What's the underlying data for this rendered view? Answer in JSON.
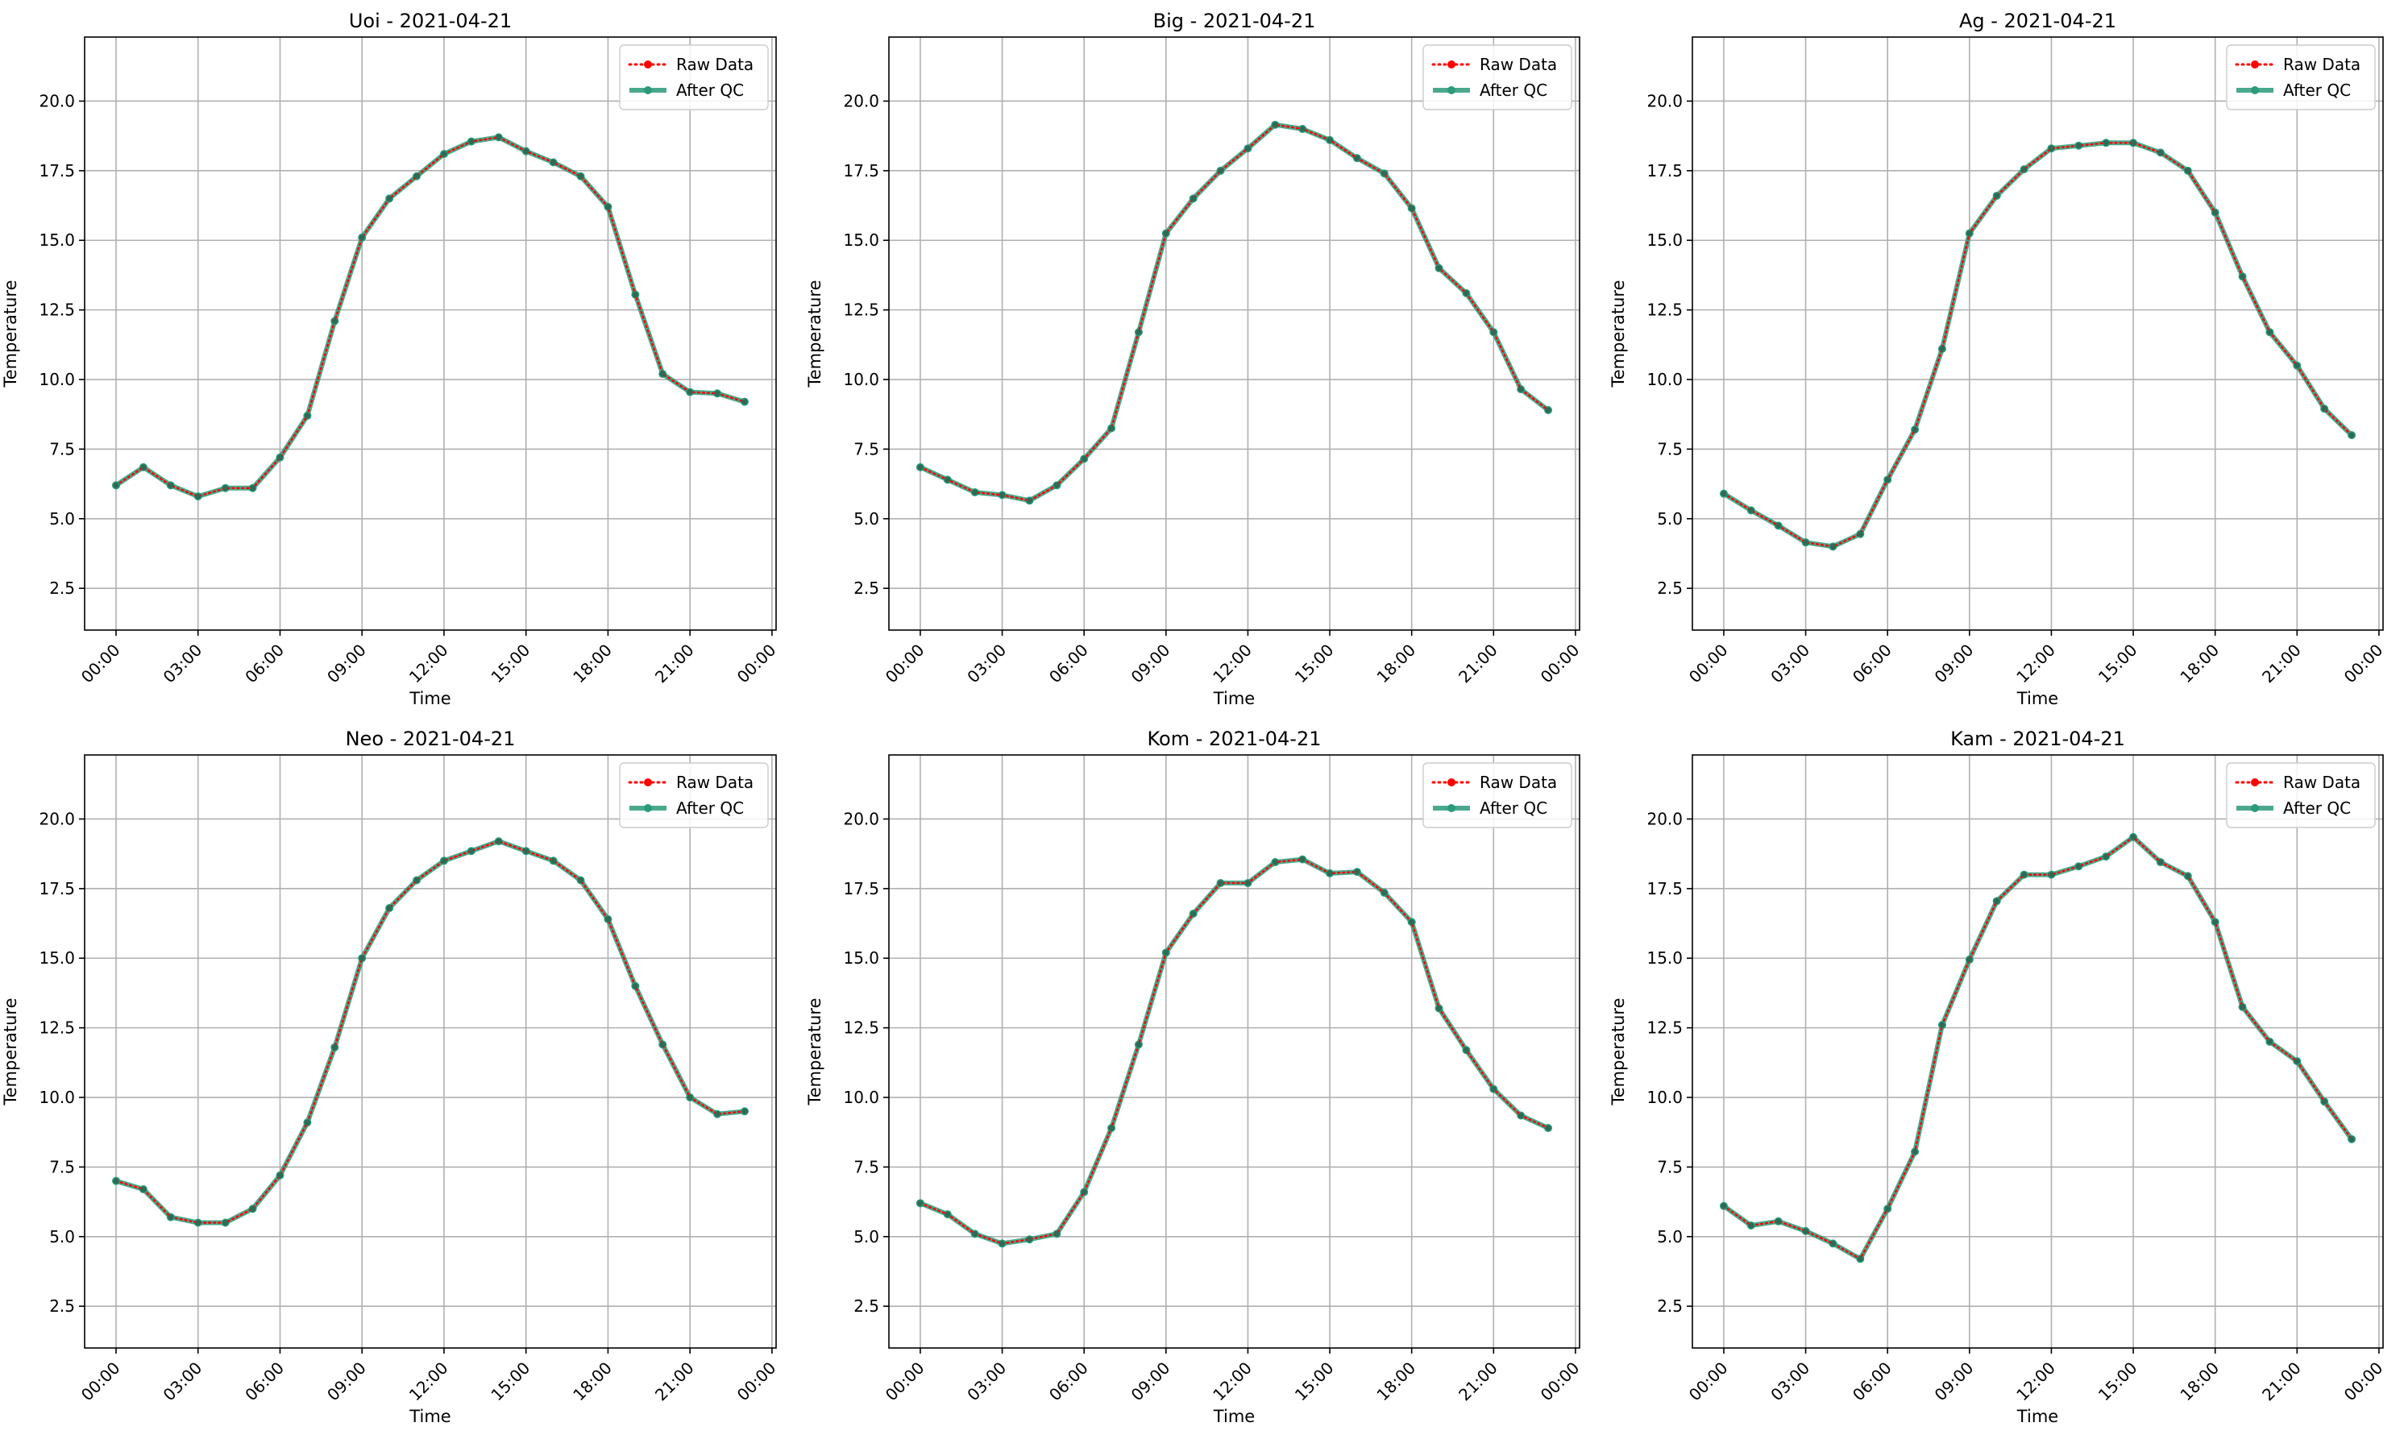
{
  "chart_data": [
    {
      "type": "line",
      "title": "Uoi - 2021-04-21",
      "xlabel": "Time",
      "ylabel": "Temperature",
      "ylim": [
        1.0,
        22.3
      ],
      "yticks": [
        "2.5",
        "5.0",
        "7.5",
        "10.0",
        "12.5",
        "15.0",
        "17.5",
        "20.0"
      ],
      "xticks": [
        "00:00",
        "03:00",
        "06:00",
        "09:00",
        "12:00",
        "15:00",
        "18:00",
        "21:00",
        "00:00"
      ],
      "x_hours": [
        0,
        1,
        2,
        3,
        4,
        5,
        6,
        7,
        8,
        9,
        10,
        11,
        12,
        13,
        14,
        15,
        16,
        17,
        18,
        19,
        20,
        21,
        22,
        23
      ],
      "grid": true,
      "legend_position": "top-right",
      "series": [
        {
          "name": "Raw Data",
          "color": "#ff0000",
          "style": "dotted",
          "values": [
            6.2,
            6.85,
            6.2,
            5.8,
            6.1,
            6.1,
            7.2,
            8.7,
            12.1,
            15.1,
            16.5,
            17.3,
            18.1,
            18.55,
            18.7,
            18.2,
            17.8,
            17.3,
            16.2,
            13.05,
            10.2,
            9.55,
            9.5,
            9.2
          ]
        },
        {
          "name": "After QC",
          "color": "#2a9a78",
          "style": "solid",
          "values": [
            6.2,
            6.85,
            6.2,
            5.8,
            6.1,
            6.1,
            7.2,
            8.7,
            12.1,
            15.1,
            16.5,
            17.3,
            18.1,
            18.55,
            18.7,
            18.2,
            17.8,
            17.3,
            16.2,
            13.05,
            10.2,
            9.55,
            9.5,
            9.2
          ]
        }
      ]
    },
    {
      "type": "line",
      "title": "Big - 2021-04-21",
      "xlabel": "Time",
      "ylabel": "Temperature",
      "ylim": [
        1.0,
        22.3
      ],
      "yticks": [
        "2.5",
        "5.0",
        "7.5",
        "10.0",
        "12.5",
        "15.0",
        "17.5",
        "20.0"
      ],
      "xticks": [
        "00:00",
        "03:00",
        "06:00",
        "09:00",
        "12:00",
        "15:00",
        "18:00",
        "21:00",
        "00:00"
      ],
      "x_hours": [
        0,
        1,
        2,
        3,
        4,
        5,
        6,
        7,
        8,
        9,
        10,
        11,
        12,
        13,
        14,
        15,
        16,
        17,
        18,
        19,
        20,
        21,
        22,
        23
      ],
      "grid": true,
      "legend_position": "top-right",
      "series": [
        {
          "name": "Raw Data",
          "color": "#ff0000",
          "style": "dotted",
          "values": [
            6.85,
            6.4,
            5.95,
            5.85,
            5.65,
            6.2,
            7.15,
            8.25,
            11.7,
            15.25,
            16.5,
            17.5,
            18.3,
            19.15,
            19.0,
            18.6,
            17.95,
            17.4,
            16.15,
            14.0,
            13.1,
            11.7,
            9.65,
            8.9
          ]
        },
        {
          "name": "After QC",
          "color": "#2a9a78",
          "style": "solid",
          "values": [
            6.85,
            6.4,
            5.95,
            5.85,
            5.65,
            6.2,
            7.15,
            8.25,
            11.7,
            15.25,
            16.5,
            17.5,
            18.3,
            19.15,
            19.0,
            18.6,
            17.95,
            17.4,
            16.15,
            14.0,
            13.1,
            11.7,
            9.65,
            8.9
          ]
        }
      ]
    },
    {
      "type": "line",
      "title": "Ag - 2021-04-21",
      "xlabel": "Time",
      "ylabel": "Temperature",
      "ylim": [
        1.0,
        22.3
      ],
      "yticks": [
        "2.5",
        "5.0",
        "7.5",
        "10.0",
        "12.5",
        "15.0",
        "17.5",
        "20.0"
      ],
      "xticks": [
        "00:00",
        "03:00",
        "06:00",
        "09:00",
        "12:00",
        "15:00",
        "18:00",
        "21:00",
        "00:00"
      ],
      "x_hours": [
        0,
        1,
        2,
        3,
        4,
        5,
        6,
        7,
        8,
        9,
        10,
        11,
        12,
        13,
        14,
        15,
        16,
        17,
        18,
        19,
        20,
        21,
        22,
        23
      ],
      "grid": true,
      "legend_position": "top-right",
      "series": [
        {
          "name": "Raw Data",
          "color": "#ff0000",
          "style": "dotted",
          "values": [
            5.9,
            5.3,
            4.75,
            4.15,
            4.0,
            4.45,
            6.4,
            8.2,
            11.1,
            15.25,
            16.6,
            17.55,
            18.3,
            18.4,
            18.5,
            18.5,
            18.15,
            17.5,
            16.0,
            13.7,
            11.7,
            10.5,
            8.95,
            8.0
          ]
        },
        {
          "name": "After QC",
          "color": "#2a9a78",
          "style": "solid",
          "values": [
            5.9,
            5.3,
            4.75,
            4.15,
            4.0,
            4.45,
            6.4,
            8.2,
            11.1,
            15.25,
            16.6,
            17.55,
            18.3,
            18.4,
            18.5,
            18.5,
            18.15,
            17.5,
            16.0,
            13.7,
            11.7,
            10.5,
            8.95,
            8.0
          ]
        }
      ]
    },
    {
      "type": "line",
      "title": "Neo - 2021-04-21",
      "xlabel": "Time",
      "ylabel": "Temperature",
      "ylim": [
        1.0,
        22.3
      ],
      "yticks": [
        "2.5",
        "5.0",
        "7.5",
        "10.0",
        "12.5",
        "15.0",
        "17.5",
        "20.0"
      ],
      "xticks": [
        "00:00",
        "03:00",
        "06:00",
        "09:00",
        "12:00",
        "15:00",
        "18:00",
        "21:00",
        "00:00"
      ],
      "x_hours": [
        0,
        1,
        2,
        3,
        4,
        5,
        6,
        7,
        8,
        9,
        10,
        11,
        12,
        13,
        14,
        15,
        16,
        17,
        18,
        19,
        20,
        21,
        22,
        23
      ],
      "grid": true,
      "legend_position": "top-right",
      "series": [
        {
          "name": "Raw Data",
          "color": "#ff0000",
          "style": "dotted",
          "values": [
            7.0,
            6.7,
            5.7,
            5.5,
            5.5,
            6.0,
            7.2,
            9.1,
            11.8,
            15.0,
            16.8,
            17.8,
            18.5,
            18.85,
            19.2,
            18.85,
            18.5,
            17.8,
            16.4,
            14.0,
            11.9,
            10.0,
            9.4,
            9.5
          ]
        },
        {
          "name": "After QC",
          "color": "#2a9a78",
          "style": "solid",
          "values": [
            7.0,
            6.7,
            5.7,
            5.5,
            5.5,
            6.0,
            7.2,
            9.1,
            11.8,
            15.0,
            16.8,
            17.8,
            18.5,
            18.85,
            19.2,
            18.85,
            18.5,
            17.8,
            16.4,
            14.0,
            11.9,
            10.0,
            9.4,
            9.5
          ]
        }
      ]
    },
    {
      "type": "line",
      "title": "Kom - 2021-04-21",
      "xlabel": "Time",
      "ylabel": "Temperature",
      "ylim": [
        1.0,
        22.3
      ],
      "yticks": [
        "2.5",
        "5.0",
        "7.5",
        "10.0",
        "12.5",
        "15.0",
        "17.5",
        "20.0"
      ],
      "xticks": [
        "00:00",
        "03:00",
        "06:00",
        "09:00",
        "12:00",
        "15:00",
        "18:00",
        "21:00",
        "00:00"
      ],
      "x_hours": [
        0,
        1,
        2,
        3,
        4,
        5,
        6,
        7,
        8,
        9,
        10,
        11,
        12,
        13,
        14,
        15,
        16,
        17,
        18,
        19,
        20,
        21,
        22,
        23
      ],
      "grid": true,
      "legend_position": "top-right",
      "series": [
        {
          "name": "Raw Data",
          "color": "#ff0000",
          "style": "dotted",
          "values": [
            6.2,
            5.8,
            5.1,
            4.75,
            4.9,
            5.1,
            6.6,
            8.9,
            11.9,
            15.2,
            16.6,
            17.7,
            17.7,
            18.45,
            18.55,
            18.05,
            18.1,
            17.35,
            16.3,
            13.2,
            11.7,
            10.3,
            9.35,
            8.9
          ]
        },
        {
          "name": "After QC",
          "color": "#2a9a78",
          "style": "solid",
          "values": [
            6.2,
            5.8,
            5.1,
            4.75,
            4.9,
            5.1,
            6.6,
            8.9,
            11.9,
            15.2,
            16.6,
            17.7,
            17.7,
            18.45,
            18.55,
            18.05,
            18.1,
            17.35,
            16.3,
            13.2,
            11.7,
            10.3,
            9.35,
            8.9
          ]
        }
      ]
    },
    {
      "type": "line",
      "title": "Kam - 2021-04-21",
      "xlabel": "Time",
      "ylabel": "Temperature",
      "ylim": [
        1.0,
        22.3
      ],
      "yticks": [
        "2.5",
        "5.0",
        "7.5",
        "10.0",
        "12.5",
        "15.0",
        "17.5",
        "20.0"
      ],
      "xticks": [
        "00:00",
        "03:00",
        "06:00",
        "09:00",
        "12:00",
        "15:00",
        "18:00",
        "21:00",
        "00:00"
      ],
      "x_hours": [
        0,
        1,
        2,
        3,
        4,
        5,
        6,
        7,
        8,
        9,
        10,
        11,
        12,
        13,
        14,
        15,
        16,
        17,
        18,
        19,
        20,
        21,
        22,
        23
      ],
      "grid": true,
      "legend_position": "top-right",
      "series": [
        {
          "name": "Raw Data",
          "color": "#ff0000",
          "style": "dotted",
          "values": [
            6.1,
            5.4,
            5.55,
            5.2,
            4.75,
            4.2,
            6.0,
            8.05,
            12.6,
            14.95,
            17.05,
            18.0,
            18.0,
            18.3,
            18.65,
            19.35,
            18.45,
            17.95,
            16.3,
            13.25,
            12.0,
            11.3,
            9.85,
            8.5
          ]
        },
        {
          "name": "After QC",
          "color": "#2a9a78",
          "style": "solid",
          "values": [
            6.1,
            5.4,
            5.55,
            5.2,
            4.75,
            4.2,
            6.0,
            8.05,
            12.6,
            14.95,
            17.05,
            18.0,
            18.0,
            18.3,
            18.65,
            19.35,
            18.45,
            17.95,
            16.3,
            13.25,
            12.0,
            11.3,
            9.85,
            8.5
          ]
        }
      ]
    }
  ]
}
